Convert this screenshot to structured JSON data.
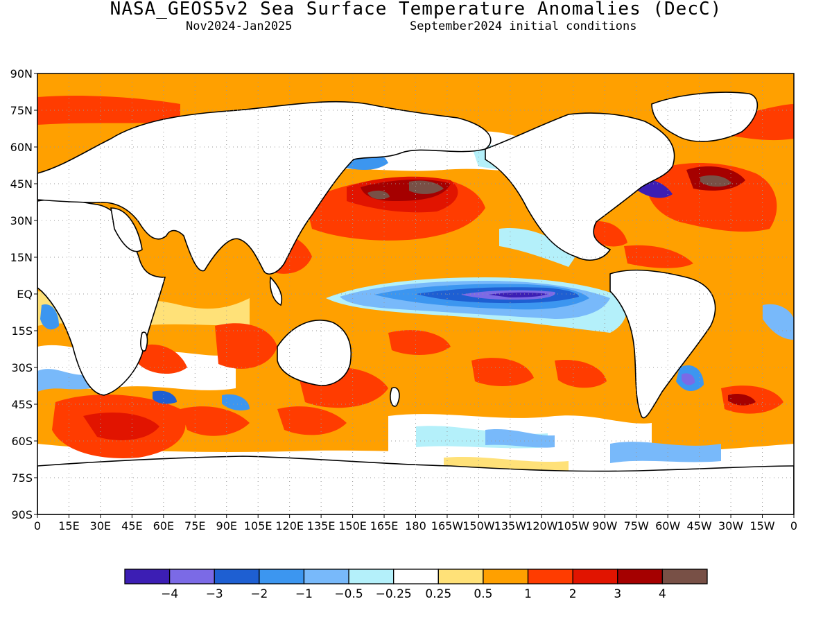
{
  "figure": {
    "title": "NASA_GEOS5v2 Sea Surface Temperature Anomalies (DecC)",
    "subtitle_left": "Nov2024-Jan2025",
    "subtitle_right": "September2024 initial conditions"
  },
  "map": {
    "projection": "equirectangular",
    "lon_range": [
      0,
      360
    ],
    "lat_range": [
      -90,
      90
    ],
    "grid": "dotted",
    "lat_ticks": [
      "90N",
      "75N",
      "60N",
      "45N",
      "30N",
      "15N",
      "EQ",
      "15S",
      "30S",
      "45S",
      "60S",
      "75S",
      "90S"
    ],
    "lon_ticks": [
      "0",
      "15E",
      "30E",
      "45E",
      "60E",
      "75E",
      "90E",
      "105E",
      "120E",
      "135E",
      "150E",
      "165E",
      "180",
      "165W",
      "150W",
      "135W",
      "120W",
      "105W",
      "90W",
      "75W",
      "60W",
      "45W",
      "30W",
      "15W",
      "0"
    ]
  },
  "colorbar": {
    "labels": [
      "-4",
      "-3",
      "-2",
      "-1",
      "-0.5",
      "-0.25",
      "0.25",
      "0.5",
      "1",
      "2",
      "3",
      "4"
    ],
    "colors": [
      "#3c1eb4",
      "#7b6ae6",
      "#1e5fd2",
      "#3c96f0",
      "#78b9fa",
      "#b4f0fa",
      "#ffffff",
      "#ffe178",
      "#ffa000",
      "#ff3c00",
      "#e11400",
      "#a50000",
      "#785046"
    ]
  },
  "chart_data": {
    "type": "heatmap",
    "title": "NASA_GEOS5v2 Sea Surface Temperature Anomalies (DecC)",
    "valid_period": "Nov2024-Jan2025",
    "initial_conditions": "September2024 initial conditions",
    "x_range": [
      0,
      360
    ],
    "y_range": [
      -90,
      90
    ],
    "color_levels": [
      -4,
      -3,
      -2,
      -1,
      -0.5,
      -0.25,
      0.25,
      0.5,
      1,
      2,
      3,
      4
    ],
    "features": [
      {
        "region": "Equatorial central-eastern Pacific",
        "anomaly_range": [
          -3,
          -1
        ]
      },
      {
        "region": "North Pacific (30N-45N, 150E-150W)",
        "anomaly_range": [
          2,
          4
        ]
      },
      {
        "region": "Northwest Atlantic off North America",
        "anomaly_range": [
          2,
          4
        ]
      },
      {
        "region": "Indian Ocean and Maritime Continent",
        "anomaly_range": [
          0.5,
          2
        ]
      },
      {
        "region": "Southern Ocean south of Africa",
        "anomaly_range": [
          1,
          3
        ]
      }
    ]
  }
}
